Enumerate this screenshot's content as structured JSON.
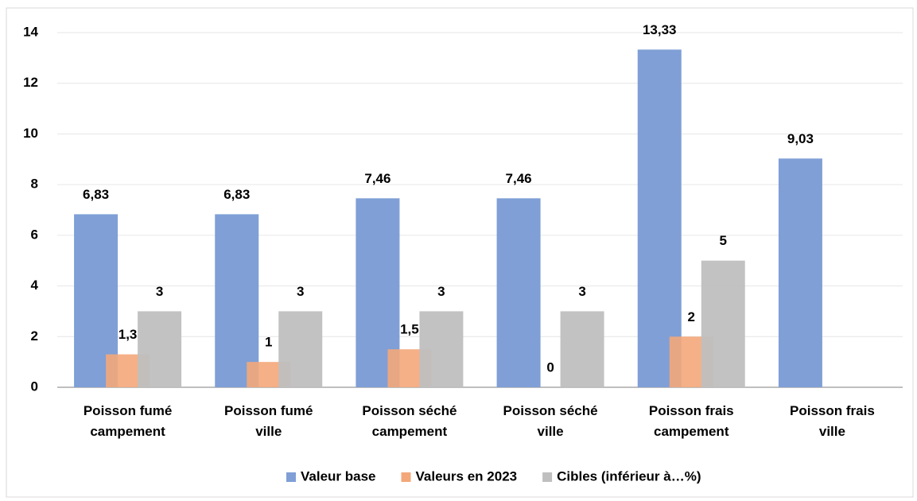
{
  "chart_data": {
    "type": "bar",
    "categories": [
      "Poisson fumé campement",
      "Poisson fumé ville",
      "Poisson séché campement",
      "Poisson séché ville",
      "Poisson frais campement",
      "Poisson frais ville"
    ],
    "series": [
      {
        "name": "Valeur base",
        "color": "#7f9fd6",
        "values": [
          6.83,
          6.83,
          7.46,
          7.46,
          13.33,
          9.03
        ],
        "value_labels": [
          "6,83",
          "6,83",
          "7,46",
          "7,46",
          "13,33",
          "9,03"
        ]
      },
      {
        "name": "Valeurs en 2023",
        "color": "#f4a77a",
        "values": [
          1.3,
          1,
          1.5,
          0,
          2,
          null
        ],
        "value_labels": [
          "1,3",
          "1",
          "1,5",
          "0",
          "2",
          null
        ]
      },
      {
        "name": "Cibles (inférieur à…%)",
        "color": "#bfbfbf",
        "values": [
          3,
          3,
          3,
          3,
          5,
          null
        ],
        "value_labels": [
          "3",
          "3",
          "3",
          "3",
          "5",
          null
        ]
      }
    ],
    "ylim": [
      0,
      14
    ],
    "yticks": [
      0,
      2,
      4,
      6,
      8,
      10,
      12,
      14
    ],
    "grid": true,
    "legend": "bottom"
  }
}
